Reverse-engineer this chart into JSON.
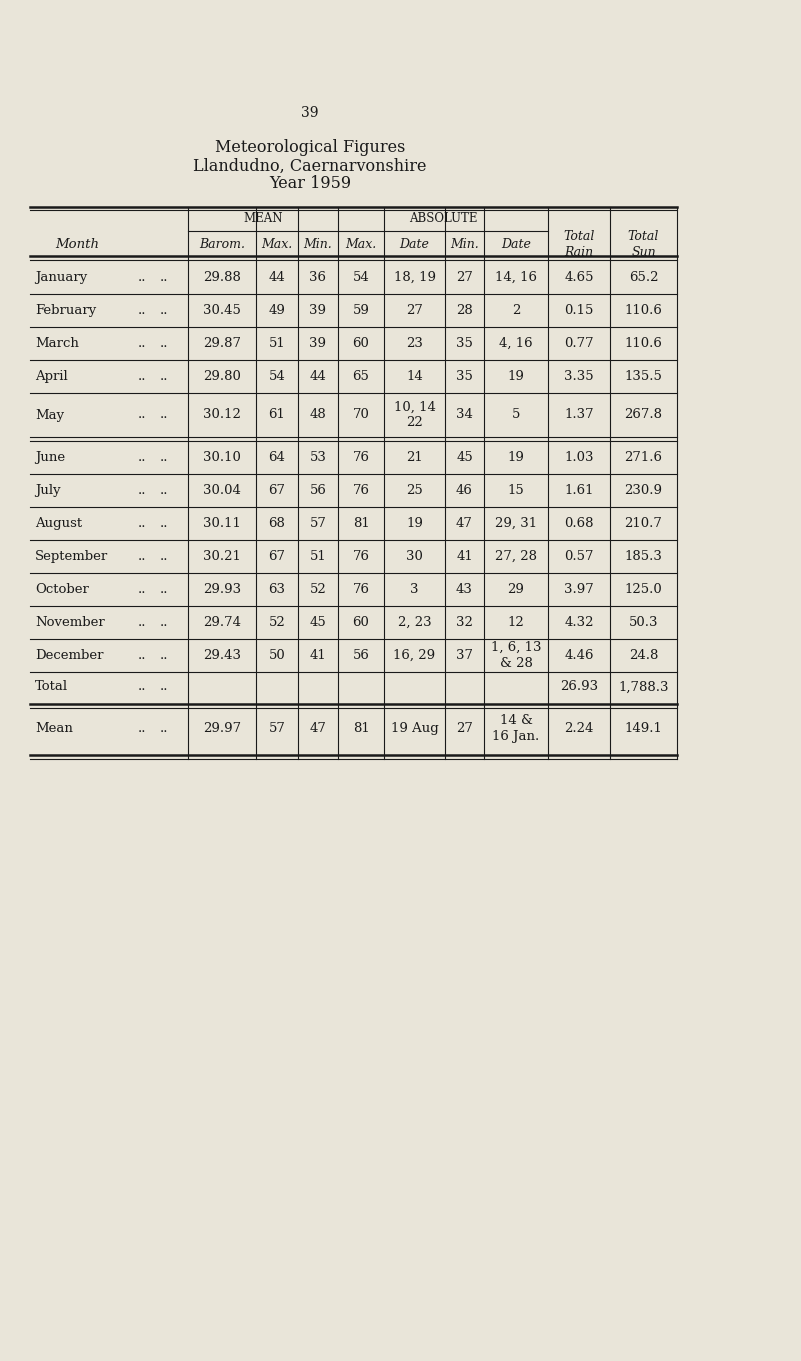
{
  "page_number": "39",
  "title_line1": "Meteorological Figures",
  "title_line2": "Llandudno, Caernarvonshire",
  "title_line3": "Year 1959",
  "background_color": "#e9e5d9",
  "text_color": "#1a1a1a",
  "rows": [
    {
      "month": "January",
      "barom": "29.88",
      "mean_max": "44",
      "mean_min": "36",
      "abs_max": "54",
      "abs_date_max": "18, 19",
      "abs_min": "27",
      "abs_date_min": "14, 16",
      "rain": "4.65",
      "sun": "65.2"
    },
    {
      "month": "February",
      "barom": "30.45",
      "mean_max": "49",
      "mean_min": "39",
      "abs_max": "59",
      "abs_date_max": "27",
      "abs_min": "28",
      "abs_date_min": "2",
      "rain": "0.15",
      "sun": "110.6"
    },
    {
      "month": "March",
      "barom": "29.87",
      "mean_max": "51",
      "mean_min": "39",
      "abs_max": "60",
      "abs_date_max": "23",
      "abs_min": "35",
      "abs_date_min": "4, 16",
      "rain": "0.77",
      "sun": "110.6"
    },
    {
      "month": "April",
      "barom": "29.80",
      "mean_max": "54",
      "mean_min": "44",
      "abs_max": "65",
      "abs_date_max": "14",
      "abs_min": "35",
      "abs_date_min": "19",
      "rain": "3.35",
      "sun": "135.5"
    },
    {
      "month": "May",
      "barom": "30.12",
      "mean_max": "61",
      "mean_min": "48",
      "abs_max": "70",
      "abs_date_max": "10, 14\n22",
      "abs_min": "34",
      "abs_date_min": "5",
      "rain": "1.37",
      "sun": "267.8"
    },
    {
      "month": "June",
      "barom": "30.10",
      "mean_max": "64",
      "mean_min": "53",
      "abs_max": "76",
      "abs_date_max": "21",
      "abs_min": "45",
      "abs_date_min": "19",
      "rain": "1.03",
      "sun": "271.6"
    },
    {
      "month": "July",
      "barom": "30.04",
      "mean_max": "67",
      "mean_min": "56",
      "abs_max": "76",
      "abs_date_max": "25",
      "abs_min": "46",
      "abs_date_min": "15",
      "rain": "1.61",
      "sun": "230.9"
    },
    {
      "month": "August",
      "barom": "30.11",
      "mean_max": "68",
      "mean_min": "57",
      "abs_max": "81",
      "abs_date_max": "19",
      "abs_min": "47",
      "abs_date_min": "29, 31",
      "rain": "0.68",
      "sun": "210.7"
    },
    {
      "month": "September",
      "barom": "30.21",
      "mean_max": "67",
      "mean_min": "51",
      "abs_max": "76",
      "abs_date_max": "30",
      "abs_min": "41",
      "abs_date_min": "27, 28",
      "rain": "0.57",
      "sun": "185.3"
    },
    {
      "month": "October",
      "barom": "29.93",
      "mean_max": "63",
      "mean_min": "52",
      "abs_max": "76",
      "abs_date_max": "3",
      "abs_min": "43",
      "abs_date_min": "29",
      "rain": "3.97",
      "sun": "125.0"
    },
    {
      "month": "November",
      "barom": "29.74",
      "mean_max": "52",
      "mean_min": "45",
      "abs_max": "60",
      "abs_date_max": "2, 23",
      "abs_min": "32",
      "abs_date_min": "12",
      "rain": "4.32",
      "sun": "50.3"
    },
    {
      "month": "December",
      "barom": "29.43",
      "mean_max": "50",
      "mean_min": "41",
      "abs_max": "56",
      "abs_date_max": "16, 29",
      "abs_min": "37",
      "abs_date_min": "1, 6, 13\n& 28",
      "rain": "4.46",
      "sun": "24.8"
    }
  ],
  "total_rain": "26.93",
  "total_sun": "1,788.3",
  "mean_barom": "29.97",
  "mean_max": "57",
  "mean_min": "47",
  "mean_abs_max": "81",
  "mean_abs_date_max": "19 Aug",
  "mean_abs_min": "27",
  "mean_abs_date_min": "14 &\n16 Jan.",
  "mean_rain": "2.24",
  "mean_sun": "149.1"
}
